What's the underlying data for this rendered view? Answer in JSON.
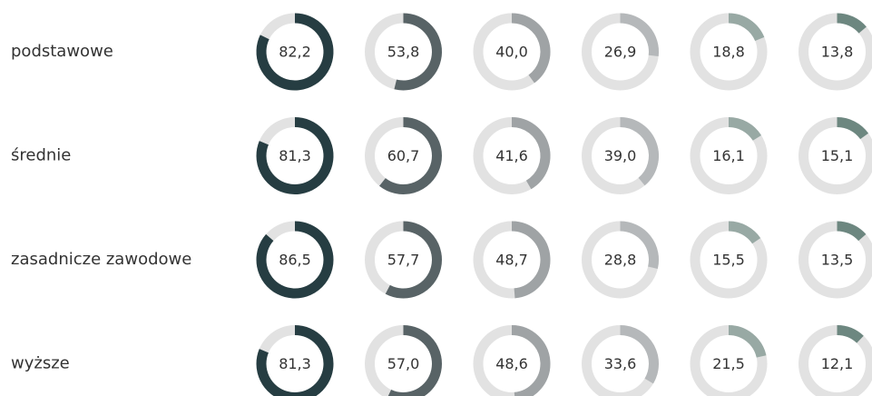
{
  "chart_data": {
    "type": "donut",
    "categories": [
      "podstawowe",
      "średnie",
      "zasadnicze zawodowe",
      "wyższe"
    ],
    "ylim": [
      0,
      100
    ],
    "track_color": "#e2e2e2",
    "series": [
      {
        "color": "#263d42",
        "values": [
          82.2,
          81.3,
          86.5,
          81.3
        ],
        "value_labels": [
          "82,2",
          "81,3",
          "86,5",
          "81,3"
        ]
      },
      {
        "color": "#586366",
        "values": [
          53.8,
          60.7,
          57.7,
          57.0
        ],
        "value_labels": [
          "53,8",
          "60,7",
          "57,7",
          "57,0"
        ]
      },
      {
        "color": "#9fa3a5",
        "values": [
          40.0,
          41.6,
          48.7,
          48.6
        ],
        "value_labels": [
          "40,0",
          "41,6",
          "48,7",
          "48,6"
        ]
      },
      {
        "color": "#b5b8ba",
        "values": [
          26.9,
          39.0,
          28.8,
          33.6
        ],
        "value_labels": [
          "26,9",
          "39,0",
          "28,8",
          "33,6"
        ]
      },
      {
        "color": "#98a9a4",
        "values": [
          18.8,
          16.1,
          15.5,
          21.5
        ],
        "value_labels": [
          "18,8",
          "16,1",
          "15,5",
          "21,5"
        ]
      },
      {
        "color": "#6d8780",
        "values": [
          13.8,
          15.1,
          13.5,
          12.1
        ],
        "value_labels": [
          "13,8",
          "15,1",
          "13,5",
          "12,1"
        ]
      }
    ]
  }
}
